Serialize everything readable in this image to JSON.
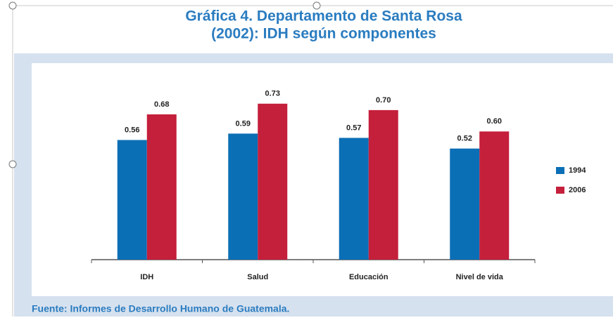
{
  "chart_data": {
    "type": "bar",
    "title": [
      "Gráfica 4. Departamento de Santa Rosa",
      "(2002): IDH según componentes"
    ],
    "categories": [
      "IDH",
      "Salud",
      "Educación",
      "Nivel de vida"
    ],
    "series": [
      {
        "name": "1994",
        "color": "#0b6fb6",
        "values": [
          0.56,
          0.59,
          0.57,
          0.52
        ],
        "value_labels": [
          "0.56",
          "0.59",
          "0.57",
          "0.52"
        ]
      },
      {
        "name": "2006",
        "color": "#c41f3b",
        "values": [
          0.68,
          0.73,
          0.7,
          0.6
        ],
        "value_labels": [
          "0.68",
          "0.73",
          "0.70",
          "0.60"
        ]
      }
    ],
    "ylim": [
      0,
      0.9
    ],
    "legend": "right",
    "source": "Fuente: Informes de Desarrollo Humano de Guatemala."
  }
}
